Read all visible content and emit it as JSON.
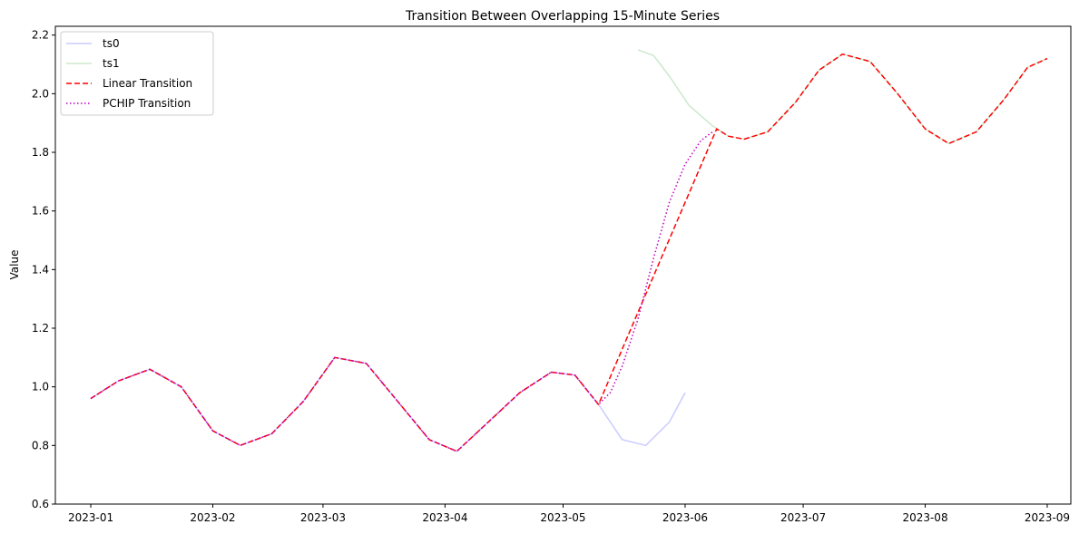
{
  "chart_data": {
    "type": "line",
    "title": "Transition Between Overlapping 15-Minute Series",
    "xlabel": "",
    "ylabel": "Value",
    "xlim": [
      "2022-12-23",
      "2023-09-07"
    ],
    "ylim": [
      0.6,
      2.23
    ],
    "x_ticks": [
      "2023-01",
      "2023-02",
      "2023-03",
      "2023-04",
      "2023-05",
      "2023-06",
      "2023-07",
      "2023-08",
      "2023-09"
    ],
    "y_ticks": [
      0.6,
      0.8,
      1.0,
      1.2,
      1.4,
      1.6,
      1.8,
      2.0,
      2.2
    ],
    "grid": false,
    "legend_position": "upper-left",
    "series": [
      {
        "name": "ts0",
        "color": "#ccccff",
        "dash": "solid",
        "x": [
          "2023-01-01",
          "2023-01-08",
          "2023-01-16",
          "2023-01-24",
          "2023-02-01",
          "2023-02-08",
          "2023-02-16",
          "2023-02-24",
          "2023-03-04",
          "2023-03-12",
          "2023-03-20",
          "2023-03-28",
          "2023-04-04",
          "2023-04-12",
          "2023-04-20",
          "2023-04-28",
          "2023-05-04",
          "2023-05-10",
          "2023-05-16",
          "2023-05-22",
          "2023-05-28",
          "2023-06-01"
        ],
        "y": [
          0.96,
          1.02,
          1.06,
          1.0,
          0.85,
          0.8,
          0.84,
          0.95,
          1.1,
          1.08,
          0.95,
          0.82,
          0.78,
          0.88,
          0.98,
          1.05,
          1.04,
          0.94,
          0.82,
          0.8,
          0.88,
          0.98
        ]
      },
      {
        "name": "ts1",
        "color": "#cce8cc",
        "dash": "solid",
        "x": [
          "2023-05-20",
          "2023-05-24",
          "2023-05-28",
          "2023-06-02",
          "2023-06-08",
          "2023-06-12",
          "2023-06-16",
          "2023-06-22",
          "2023-06-29",
          "2023-07-05",
          "2023-07-11",
          "2023-07-18",
          "2023-07-25",
          "2023-08-01",
          "2023-08-07",
          "2023-08-14",
          "2023-08-21",
          "2023-08-27",
          "2023-09-01"
        ],
        "y": [
          2.15,
          2.13,
          2.06,
          1.96,
          1.89,
          1.855,
          1.845,
          1.87,
          1.97,
          2.08,
          2.135,
          2.11,
          2.0,
          1.88,
          1.83,
          1.87,
          1.98,
          2.09,
          2.12
        ]
      },
      {
        "name": "Linear Transition",
        "color": "#ff0000",
        "dash": "dashed",
        "x": [
          "2023-01-01",
          "2023-01-08",
          "2023-01-16",
          "2023-01-24",
          "2023-02-01",
          "2023-02-08",
          "2023-02-16",
          "2023-02-24",
          "2023-03-04",
          "2023-03-12",
          "2023-03-20",
          "2023-03-28",
          "2023-04-04",
          "2023-04-12",
          "2023-04-20",
          "2023-04-28",
          "2023-05-04",
          "2023-05-10",
          "2023-06-09",
          "2023-06-12",
          "2023-06-16",
          "2023-06-22",
          "2023-06-29",
          "2023-07-05",
          "2023-07-11",
          "2023-07-18",
          "2023-07-25",
          "2023-08-01",
          "2023-08-07",
          "2023-08-14",
          "2023-08-21",
          "2023-08-27",
          "2023-09-01"
        ],
        "y": [
          0.96,
          1.02,
          1.06,
          1.0,
          0.85,
          0.8,
          0.84,
          0.95,
          1.1,
          1.08,
          0.95,
          0.82,
          0.78,
          0.88,
          0.98,
          1.05,
          1.04,
          0.94,
          1.88,
          1.855,
          1.845,
          1.87,
          1.97,
          2.08,
          2.135,
          2.11,
          2.0,
          1.88,
          1.83,
          1.87,
          1.98,
          2.09,
          2.12
        ]
      },
      {
        "name": "PCHIP Transition",
        "color": "#bf00bf",
        "dash": "dotted",
        "x": [
          "2023-01-01",
          "2023-01-08",
          "2023-01-16",
          "2023-01-24",
          "2023-02-01",
          "2023-02-08",
          "2023-02-16",
          "2023-02-24",
          "2023-03-04",
          "2023-03-12",
          "2023-03-20",
          "2023-03-28",
          "2023-04-04",
          "2023-04-12",
          "2023-04-20",
          "2023-04-28",
          "2023-05-04",
          "2023-05-10",
          "2023-05-13",
          "2023-05-16",
          "2023-05-20",
          "2023-05-24",
          "2023-05-28",
          "2023-06-01",
          "2023-06-05",
          "2023-06-08"
        ],
        "y": [
          0.96,
          1.02,
          1.06,
          1.0,
          0.85,
          0.8,
          0.84,
          0.95,
          1.1,
          1.08,
          0.95,
          0.82,
          0.78,
          0.88,
          0.98,
          1.05,
          1.04,
          0.94,
          0.98,
          1.07,
          1.23,
          1.44,
          1.63,
          1.76,
          1.84,
          1.87
        ]
      }
    ]
  }
}
